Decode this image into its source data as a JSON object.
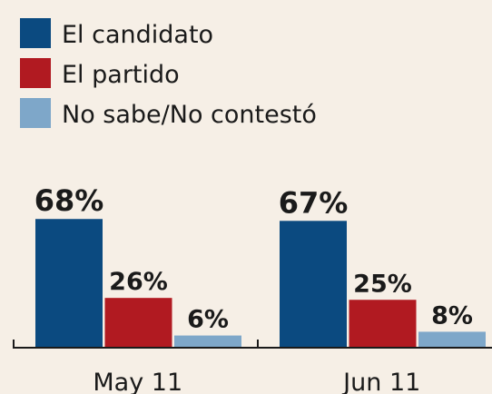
{
  "chart_data": {
    "type": "bar",
    "categories": [
      "May 11",
      "Jun 11"
    ],
    "series": [
      {
        "name": "El candidato",
        "color": "#0b4a80",
        "values": [
          68,
          67
        ],
        "value_labels": [
          "68%",
          "67%"
        ]
      },
      {
        "name": "El partido",
        "color": "#b11a21",
        "values": [
          26,
          25
        ],
        "value_labels": [
          "26%",
          "25%"
        ]
      },
      {
        "name": "No sabe/No contestó",
        "color": "#7ea7c9",
        "values": [
          6,
          8
        ],
        "value_labels": [
          "6%",
          "8%"
        ]
      }
    ]
  }
}
